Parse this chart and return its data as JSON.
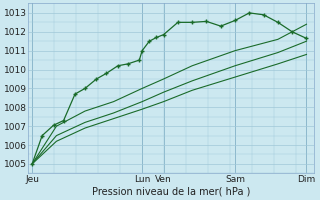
{
  "xlabel": "Pression niveau de la mer( hPa )",
  "bg_color": "#cce8f0",
  "grid_color": "#a0c8d8",
  "line_color": "#1a6b2a",
  "ylim": [
    1004.5,
    1013.5
  ],
  "yticks": [
    1005,
    1006,
    1007,
    1008,
    1009,
    1010,
    1011,
    1012,
    1013
  ],
  "xlim": [
    0,
    20
  ],
  "day_labels": [
    "Jeu",
    "Lun",
    "Ven",
    "Sam",
    "Dim"
  ],
  "day_positions": [
    0.3,
    8.0,
    9.5,
    14.5,
    19.5
  ],
  "vline_positions": [
    0.3,
    8.0,
    9.5,
    14.5,
    19.5
  ],
  "series1_x": [
    0.3,
    1.0,
    1.8,
    2.5,
    3.3,
    4.0,
    4.8,
    5.5,
    6.3,
    7.0,
    7.8,
    8.0,
    8.5,
    9.0,
    9.5,
    10.5,
    11.5,
    12.5,
    13.5,
    14.5,
    15.5,
    16.5,
    17.5,
    18.5,
    19.5
  ],
  "series1_y": [
    1005.0,
    1006.5,
    1007.05,
    1007.3,
    1008.7,
    1009.0,
    1009.5,
    1009.8,
    1010.2,
    1010.3,
    1010.5,
    1011.0,
    1011.5,
    1011.7,
    1011.85,
    1012.5,
    1012.5,
    1012.55,
    1012.3,
    1012.6,
    1013.0,
    1012.9,
    1012.5,
    1012.0,
    1011.65
  ],
  "series2_x": [
    0.3,
    2.0,
    4.0,
    6.0,
    8.0,
    9.5,
    11.5,
    14.5,
    17.5,
    19.5
  ],
  "series2_y": [
    1005.0,
    1007.0,
    1007.8,
    1008.3,
    1009.0,
    1009.5,
    1010.2,
    1011.0,
    1011.6,
    1012.4
  ],
  "series3_x": [
    0.3,
    2.0,
    4.0,
    6.0,
    8.0,
    9.5,
    11.5,
    14.5,
    17.5,
    19.5
  ],
  "series3_y": [
    1005.0,
    1006.5,
    1007.2,
    1007.7,
    1008.3,
    1008.8,
    1009.4,
    1010.2,
    1010.9,
    1011.5
  ],
  "series4_x": [
    0.3,
    2.0,
    4.0,
    6.0,
    8.0,
    9.5,
    11.5,
    14.5,
    17.5,
    19.5
  ],
  "series4_y": [
    1005.0,
    1006.2,
    1006.9,
    1007.4,
    1007.9,
    1008.3,
    1008.9,
    1009.6,
    1010.3,
    1010.8
  ],
  "xlabel_fontsize": 7,
  "tick_fontsize": 6.5
}
